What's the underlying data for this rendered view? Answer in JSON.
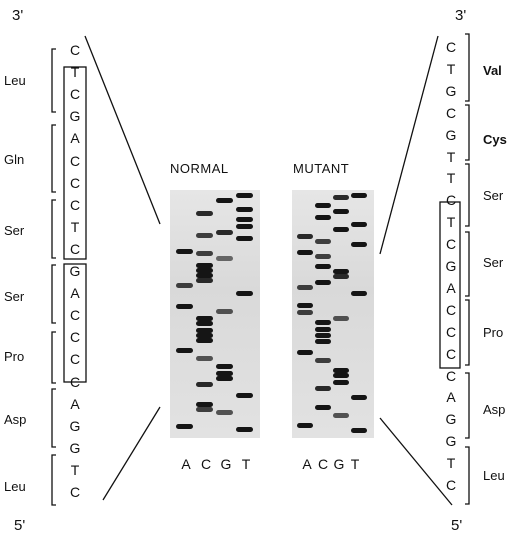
{
  "left_strand": {
    "end_top": "3'",
    "end_bottom": "5'",
    "bases": [
      "C",
      "T",
      "C",
      "G",
      "A",
      "C",
      "C",
      "C",
      "T",
      "C",
      "G",
      "A",
      "C",
      "C",
      "C",
      "C",
      "A",
      "G",
      "G",
      "T",
      "C"
    ],
    "codons": [
      {
        "label": "Leu",
        "bold": false
      },
      {
        "label": "Gln",
        "bold": false
      },
      {
        "label": "Ser",
        "bold": false
      },
      {
        "label": "Ser",
        "bold": false
      },
      {
        "label": "Pro",
        "bold": false
      },
      {
        "label": "Asp",
        "bold": false
      },
      {
        "label": "Leu",
        "bold": false
      }
    ]
  },
  "right_strand": {
    "end_top": "3'",
    "end_bottom": "5'",
    "bases": [
      "C",
      "T",
      "G",
      "C",
      "G",
      "T",
      "T",
      "C",
      "T",
      "C",
      "G",
      "A",
      "C",
      "C",
      "C",
      "C",
      "A",
      "G",
      "G",
      "T",
      "C"
    ],
    "codons": [
      {
        "label": "Val",
        "bold": true
      },
      {
        "label": "Cys",
        "bold": true
      },
      {
        "label": "Ser",
        "bold": false
      },
      {
        "label": "Ser",
        "bold": false
      },
      {
        "label": "Pro",
        "bold": false
      },
      {
        "label": "Asp",
        "bold": false
      },
      {
        "label": "Leu",
        "bold": false
      }
    ]
  },
  "gels": {
    "normal": {
      "title": "NORMAL",
      "lanes": [
        "A",
        "C",
        "G",
        "T"
      ]
    },
    "mutant": {
      "title": "MUTANT",
      "lanes": [
        "A",
        "C",
        "G",
        "T"
      ]
    }
  }
}
